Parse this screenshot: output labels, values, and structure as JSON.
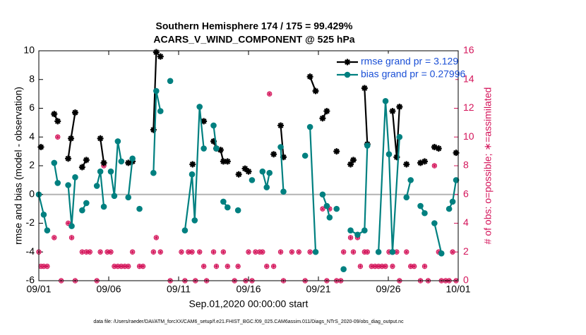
{
  "chart_data": {
    "type": "line",
    "title": "Southern Hemisphere 174 / 175 = 99.429%",
    "subtitle": "ACARS_V_WIND_COMPONENT @ 525 hPa",
    "xlabel": "Sep.01,2020 00:00:00 start",
    "ylabel": "rmse and bias (model - observation)",
    "y2label": "# of obs: o=possible; ∗=assimilated",
    "footnote": "data file: /Users/raeder/DAI/ATM_forcXX/CAM6_setup/f.e21.FHIST_BGC.f09_025.CAM6assim.011/Diags_NTrS_2020-09/obs_diag_output.nc",
    "xlim": [
      0,
      30
    ],
    "xticks": [
      {
        "value": 0,
        "label": "09/01"
      },
      {
        "value": 5,
        "label": "09/06"
      },
      {
        "value": 10,
        "label": "09/11"
      },
      {
        "value": 15,
        "label": "09/16"
      },
      {
        "value": 20,
        "label": "09/21"
      },
      {
        "value": 25,
        "label": "09/26"
      },
      {
        "value": 30,
        "label": "10/01"
      }
    ],
    "ylim": [
      -6,
      10
    ],
    "yticks": [
      -6,
      -4,
      -2,
      0,
      2,
      4,
      6,
      8,
      10
    ],
    "y2lim": [
      0,
      16
    ],
    "y2ticks": [
      0,
      2,
      4,
      6,
      8,
      10,
      12,
      14,
      16
    ],
    "hline": 0,
    "legend": "upper right",
    "series": [
      {
        "name": "rmse grand pr = 3.129",
        "color": "#000000",
        "marker": "asterisk",
        "x": [
          0.15,
          null,
          1.1,
          1.35,
          null,
          2.1,
          2.3,
          2.6,
          null,
          3.1,
          3.4,
          null,
          4.4,
          4.65,
          null,
          6.4,
          6.7,
          null,
          8.2,
          8.4,
          8.7,
          null,
          11.0,
          null,
          11.8,
          null,
          12.5,
          12.7,
          13.0,
          13.2,
          13.5,
          null,
          14.3,
          null,
          14.75,
          15.0,
          null,
          16.8,
          null,
          17.3,
          17.5,
          null,
          19.4,
          19.8,
          null,
          20.3,
          20.6,
          null,
          21.3,
          null,
          22.3,
          22.5,
          null,
          23.3,
          23.5,
          null,
          25.3,
          25.6,
          25.8,
          null,
          26.3,
          null,
          27.3,
          27.6,
          null,
          28.3,
          28.6,
          null,
          29.85
        ],
        "values": [
          3.3,
          null,
          5.6,
          5.1,
          null,
          2.5,
          3.9,
          5.7,
          null,
          1.9,
          2.4,
          null,
          3.9,
          2.2,
          null,
          2.2,
          2.3,
          null,
          4.5,
          9.9,
          9.6,
          null,
          2.1,
          null,
          5.1,
          null,
          3.7,
          3.2,
          3.1,
          2.3,
          2.3,
          null,
          1.4,
          null,
          1.8,
          1.6,
          null,
          2.8,
          null,
          4.8,
          2.6,
          null,
          8.2,
          7.2,
          null,
          5.3,
          5.8,
          null,
          3.0,
          null,
          2.1,
          2.4,
          null,
          7.4,
          3.5,
          null,
          5.8,
          2.6,
          6.1,
          null,
          2.1,
          null,
          2.2,
          2.3,
          null,
          3.3,
          3.2,
          null,
          2.9
        ]
      },
      {
        "name": "bias grand pr = 0.27996",
        "color": "#008080",
        "marker": "circle",
        "x": [
          0,
          0.35,
          0.6,
          null,
          1.1,
          1.35,
          null,
          2.1,
          2.35,
          2.6,
          null,
          3.1,
          3.4,
          null,
          4.15,
          4.4,
          4.65,
          null,
          5.15,
          5.4,
          5.65,
          5.9,
          null,
          6.4,
          6.7,
          null,
          7.2,
          null,
          8.2,
          8.4,
          8.7,
          null,
          9.4,
          null,
          10.45,
          10.96,
          11.15,
          11.5,
          11.8,
          null,
          12.5,
          12.7,
          null,
          13.2,
          13.5,
          null,
          14.25,
          null,
          15.25,
          null,
          16.0,
          16.3,
          16.5,
          null,
          17.3,
          17.5,
          null,
          19.05,
          null,
          19.4,
          19.8,
          null,
          20.3,
          20.6,
          20.8,
          null,
          21.3,
          null,
          21.8,
          null,
          22.3,
          22.8,
          23.3,
          23.5,
          null,
          24.3,
          24.8,
          25.05,
          25.3,
          25.8,
          null,
          26.3,
          26.6,
          null,
          27.3,
          27.6,
          null,
          28.3,
          28.8,
          null,
          29.35,
          29.6,
          29.85
        ],
        "values": [
          0,
          -1.4,
          -2.5,
          null,
          2.2,
          0.8,
          null,
          0.65,
          -2.2,
          1.2,
          null,
          -1.1,
          -0.6,
          null,
          0.6,
          1.6,
          -0.85,
          null,
          1.6,
          -0.1,
          3.7,
          2.3,
          null,
          -0.2,
          2.5,
          null,
          -1.0,
          null,
          1.5,
          7.2,
          5.8,
          null,
          7.9,
          null,
          -2.5,
          1.4,
          -1.8,
          6.1,
          3.2,
          null,
          4.8,
          3.2,
          null,
          -0.5,
          -0.9,
          null,
          -1.1,
          null,
          1.0,
          null,
          1.6,
          0.5,
          1.5,
          null,
          3.3,
          0.2,
          null,
          2.7,
          null,
          4.7,
          -4.0,
          null,
          0,
          -0.8,
          -1.6,
          null,
          -1.0,
          null,
          -5.2,
          null,
          -2.5,
          -2.8,
          -2.5,
          3.4,
          null,
          -4.0,
          6.5,
          2.8,
          -4.0,
          4.0,
          null,
          -0.2,
          1.0,
          null,
          -0.8,
          -1.3,
          null,
          -2.0,
          -4.1,
          null,
          -1.0,
          -0.5,
          1.0
        ]
      }
    ],
    "obs_count": {
      "color": "#d4145a",
      "axis": "y2",
      "x": [
        0,
        0.15,
        0.35,
        0.6,
        1.1,
        1.35,
        1.6,
        2.1,
        2.35,
        2.6,
        3.1,
        3.4,
        3.65,
        4.15,
        4.4,
        4.65,
        4.9,
        5.15,
        5.4,
        5.65,
        5.9,
        6.15,
        6.4,
        6.7,
        7.2,
        7.45,
        8.2,
        8.4,
        8.7,
        9.4,
        10.2,
        10.45,
        10.7,
        10.96,
        11.2,
        11.5,
        11.8,
        12.0,
        12.5,
        12.7,
        13.2,
        13.5,
        14.0,
        14.25,
        14.8,
        15.0,
        15.25,
        15.5,
        15.8,
        16.0,
        16.3,
        16.5,
        16.8,
        17.3,
        17.5,
        18.1,
        18.6,
        19.05,
        19.4,
        19.8,
        20.3,
        20.6,
        20.8,
        21.3,
        21.6,
        21.8,
        22.3,
        22.5,
        22.8,
        23.0,
        23.3,
        23.5,
        23.8,
        24.05,
        24.3,
        24.55,
        24.8,
        25.05,
        25.3,
        25.6,
        25.8,
        26.3,
        26.6,
        26.85,
        27.3,
        27.6,
        27.85,
        28.3,
        28.6,
        28.8,
        29.1,
        29.35,
        29.6,
        29.85
      ],
      "values": [
        2,
        1,
        1,
        1,
        3,
        10,
        0,
        4,
        3,
        0,
        2,
        2,
        2,
        0,
        2,
        8,
        2,
        2,
        1,
        1,
        1,
        1,
        1,
        2,
        1,
        1,
        2,
        3,
        2,
        0,
        2,
        0,
        2,
        2,
        0,
        2,
        1,
        0,
        2,
        1,
        2,
        1,
        0,
        1,
        0,
        2,
        0,
        2,
        2,
        2,
        1,
        13,
        1,
        2,
        0,
        2,
        2,
        0,
        2,
        2,
        5,
        0,
        5,
        0,
        0,
        2,
        3,
        2,
        3,
        1,
        2,
        2,
        1,
        1,
        1,
        1,
        1,
        2,
        1,
        2,
        0,
        2,
        1,
        1,
        0,
        1,
        0,
        8,
        2,
        0,
        0,
        0,
        2,
        0
      ]
    }
  }
}
